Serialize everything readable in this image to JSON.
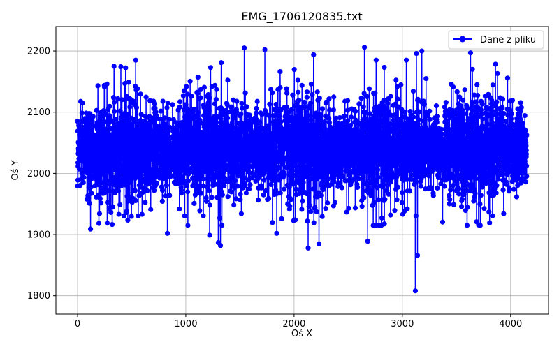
{
  "chart_data": {
    "type": "line",
    "title": "EMG_1706120835.txt",
    "xlabel": "Oś X",
    "ylabel": "Oś Y",
    "xlim": [
      -200,
      4350
    ],
    "ylim": [
      1770,
      2240
    ],
    "xticks": [
      0,
      1000,
      2000,
      3000,
      4000
    ],
    "yticks": [
      1800,
      1900,
      2000,
      2100,
      2200
    ],
    "grid": true,
    "legend_position": "top-right",
    "series": [
      {
        "name": "Dane z pliku",
        "color": "#0000ff",
        "marker": "circle",
        "n_points": 4150,
        "y_mean": 2040,
        "y_spread": 40,
        "notable_points": [
          {
            "x": 1540,
            "y": 2205
          },
          {
            "x": 1730,
            "y": 2202
          },
          {
            "x": 2680,
            "y": 2218
          },
          {
            "x": 2650,
            "y": 2206
          },
          {
            "x": 3180,
            "y": 2200
          },
          {
            "x": 3630,
            "y": 2197
          },
          {
            "x": 3130,
            "y": 2196
          },
          {
            "x": 2180,
            "y": 2194
          },
          {
            "x": 3140,
            "y": 1866
          },
          {
            "x": 3120,
            "y": 1808
          },
          {
            "x": 2130,
            "y": 1878
          },
          {
            "x": 1320,
            "y": 1882
          },
          {
            "x": 1300,
            "y": 1887
          },
          {
            "x": 2230,
            "y": 1885
          },
          {
            "x": 2680,
            "y": 1889
          },
          {
            "x": 1220,
            "y": 1899
          },
          {
            "x": 830,
            "y": 1902
          },
          {
            "x": 1840,
            "y": 1902
          },
          {
            "x": 120,
            "y": 1909
          }
        ]
      }
    ]
  }
}
